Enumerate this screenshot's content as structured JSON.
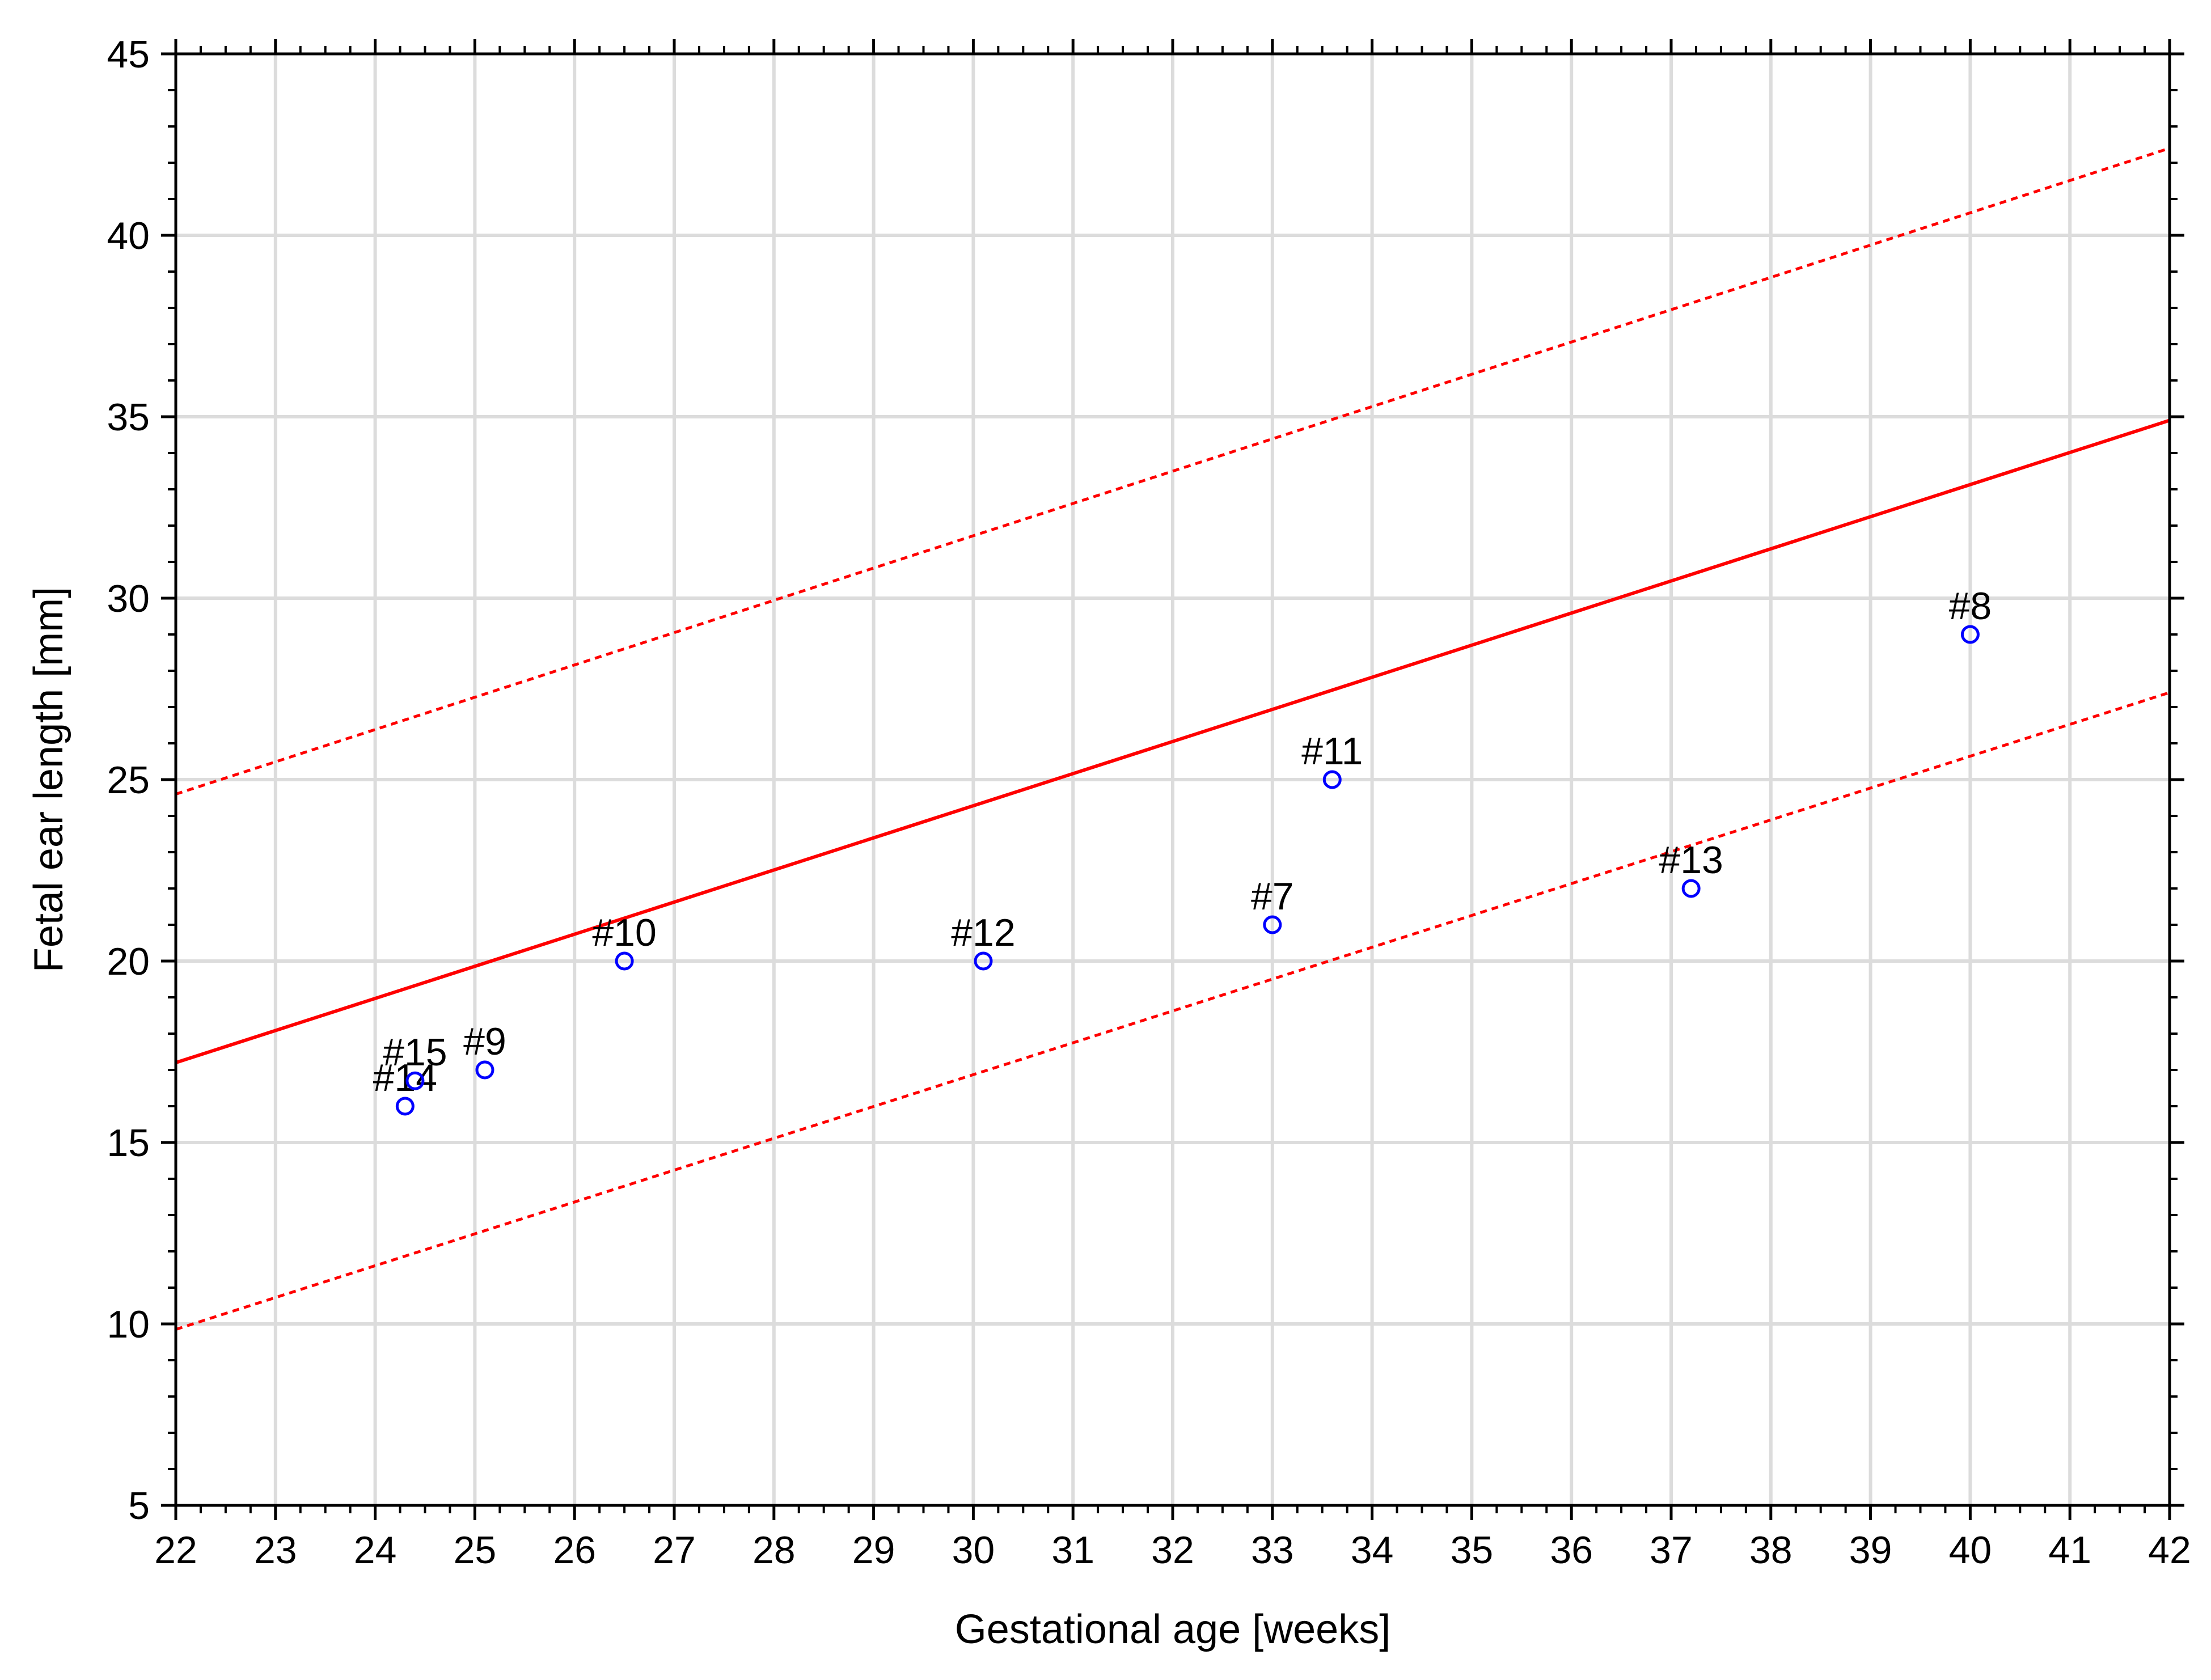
{
  "chart_data": {
    "type": "scatter",
    "title": "",
    "xlabel": "Gestational age [weeks]",
    "ylabel": "Fetal ear length [mm]",
    "xlim": [
      22,
      42
    ],
    "ylim": [
      5,
      45
    ],
    "xticks": [
      22,
      23,
      24,
      25,
      26,
      27,
      28,
      29,
      30,
      31,
      32,
      33,
      34,
      35,
      36,
      37,
      38,
      39,
      40,
      41,
      42
    ],
    "yticks": [
      5,
      10,
      15,
      20,
      25,
      30,
      35,
      40,
      45
    ],
    "grid": true,
    "points": [
      {
        "label": "#14",
        "x": 24.3,
        "y": 16.0
      },
      {
        "label": "#15",
        "x": 24.4,
        "y": 16.7
      },
      {
        "label": "#9",
        "x": 25.1,
        "y": 17.0
      },
      {
        "label": "#10",
        "x": 26.5,
        "y": 20.0
      },
      {
        "label": "#12",
        "x": 30.1,
        "y": 20.0
      },
      {
        "label": "#7",
        "x": 33.0,
        "y": 21.0
      },
      {
        "label": "#11",
        "x": 33.6,
        "y": 25.0
      },
      {
        "label": "#13",
        "x": 37.2,
        "y": 22.0
      },
      {
        "label": "#8",
        "x": 40.0,
        "y": 29.0
      }
    ],
    "lines": [
      {
        "style": "solid",
        "x": [
          22,
          42
        ],
        "y": [
          17.2,
          34.9
        ]
      },
      {
        "style": "dotted",
        "x": [
          22,
          42
        ],
        "y": [
          24.6,
          42.4
        ]
      },
      {
        "style": "dotted",
        "x": [
          22,
          42
        ],
        "y": [
          9.85,
          27.4
        ]
      }
    ],
    "colors": {
      "point": "#0000ff",
      "line": "#ff0000",
      "grid": "#dcdcdc",
      "axis": "#000000"
    }
  }
}
